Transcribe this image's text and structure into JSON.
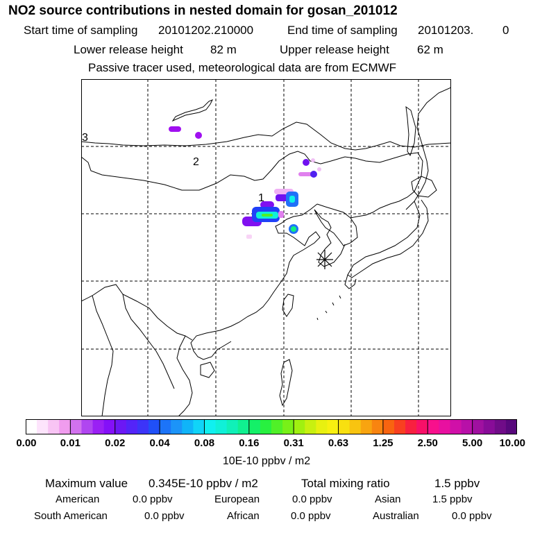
{
  "title": "NO2 source contributions in nested domain for gosan_201012",
  "sampling": {
    "start_label": "Start time of sampling",
    "start_value": "20101202.210000",
    "end_label": "End time of sampling",
    "end_value": "20101203.",
    "end_suffix": "0"
  },
  "release": {
    "lower_label": "Lower release height",
    "lower_value": "82 m",
    "upper_label": "Upper release height",
    "upper_value": "62 m"
  },
  "note": "Passive tracer used, meteorological data are from ECMWF",
  "chart_data": {
    "type": "heatmap",
    "title": "NO2 source contributions in nested domain for gosan_201012",
    "grid": true,
    "site_marker": "gosan (asterisk)",
    "trajectory_labels": [
      "1",
      "2",
      "3"
    ],
    "colorbar": {
      "unit": "10E-10 ppbv / m2",
      "ticks": [
        "0.00",
        "0.01",
        "0.02",
        "0.04",
        "0.08",
        "0.16",
        "0.31",
        "0.63",
        "1.25",
        "2.50",
        "5.00",
        "10.00"
      ],
      "colors": [
        "#ffffff",
        "#fde4fc",
        "#f8c4f4",
        "#f09cee",
        "#d272ee",
        "#b046f0",
        "#9a20f4",
        "#8410f8",
        "#6c18f4",
        "#5424f8",
        "#3c34f8",
        "#2050f8",
        "#1c74f8",
        "#1c94f8",
        "#10b4f8",
        "#10d4f8",
        "#10f0f0",
        "#10f0d8",
        "#10f0b8",
        "#10f090",
        "#14f068",
        "#28f040",
        "#50f028",
        "#78f018",
        "#a0f010",
        "#c8f010",
        "#e8f010",
        "#f8f010",
        "#f8e010",
        "#f8c410",
        "#f8a410",
        "#f88410",
        "#f86410",
        "#f84020",
        "#f82040",
        "#f81068",
        "#f8108c",
        "#e810a0",
        "#d010a8",
        "#b810a8",
        "#a010a0",
        "#880c98",
        "#700c88",
        "#58087c"
      ]
    }
  },
  "summary": {
    "max_label": "Maximum value",
    "max_value": "0.345E-10 ppbv / m2",
    "total_label": "Total mixing ratio",
    "total_value": "1.5 ppbv",
    "regions": [
      {
        "name": "American",
        "value": "0.0 ppbv"
      },
      {
        "name": "European",
        "value": "0.0 ppbv"
      },
      {
        "name": "Asian",
        "value": "1.5 ppbv"
      },
      {
        "name": "South American",
        "value": "0.0 ppbv"
      },
      {
        "name": "African",
        "value": "0.0 ppbv"
      },
      {
        "name": "Australian",
        "value": "0.0 ppbv"
      }
    ]
  }
}
